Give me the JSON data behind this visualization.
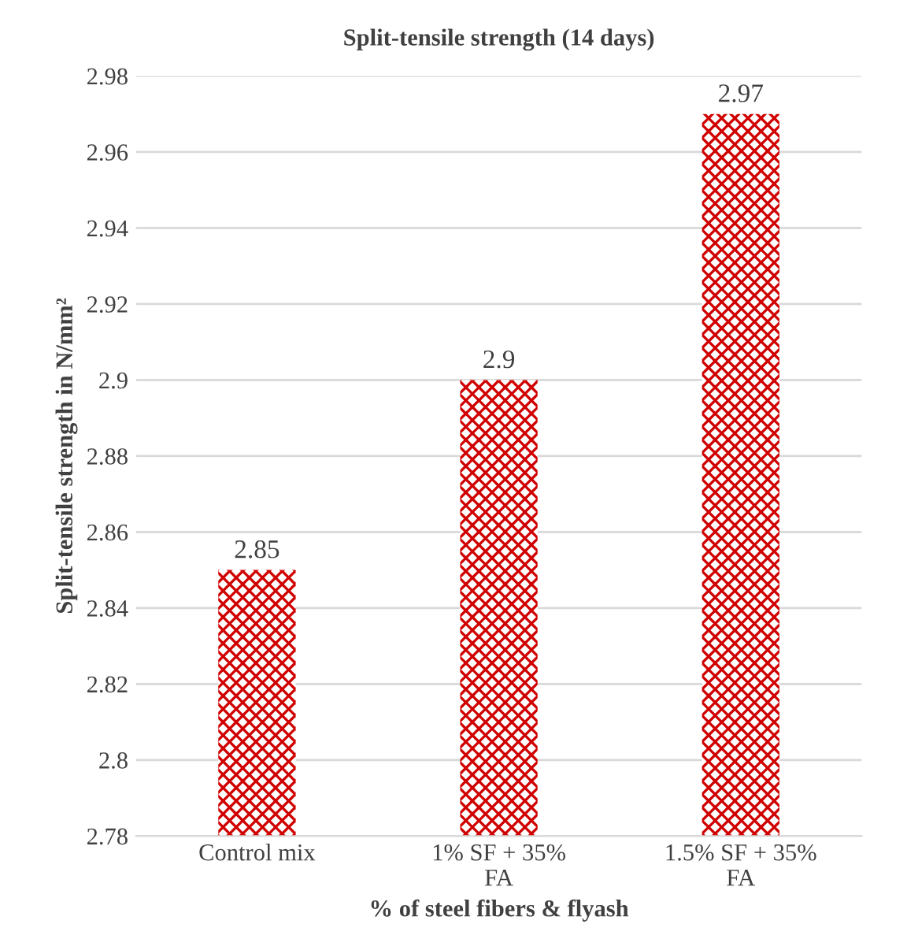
{
  "chart_data": {
    "type": "bar",
    "title": "Split-tensile strength (14 days)",
    "xlabel": "% of steel fibers & flyash",
    "ylabel": "Split-tensile strength in N/mm²",
    "categories": [
      "Control mix",
      "1% SF + 35%\nFA",
      "1.5% SF + 35%\nFA"
    ],
    "values": [
      2.85,
      2.9,
      2.97
    ],
    "color": "#d00000",
    "ylim": [
      2.78,
      2.98
    ],
    "yticks": [
      2.78,
      2.8,
      2.82,
      2.84,
      2.86,
      2.88,
      2.9,
      2.92,
      2.94,
      2.96,
      2.98
    ],
    "grid": "y",
    "data_labels": true
  }
}
